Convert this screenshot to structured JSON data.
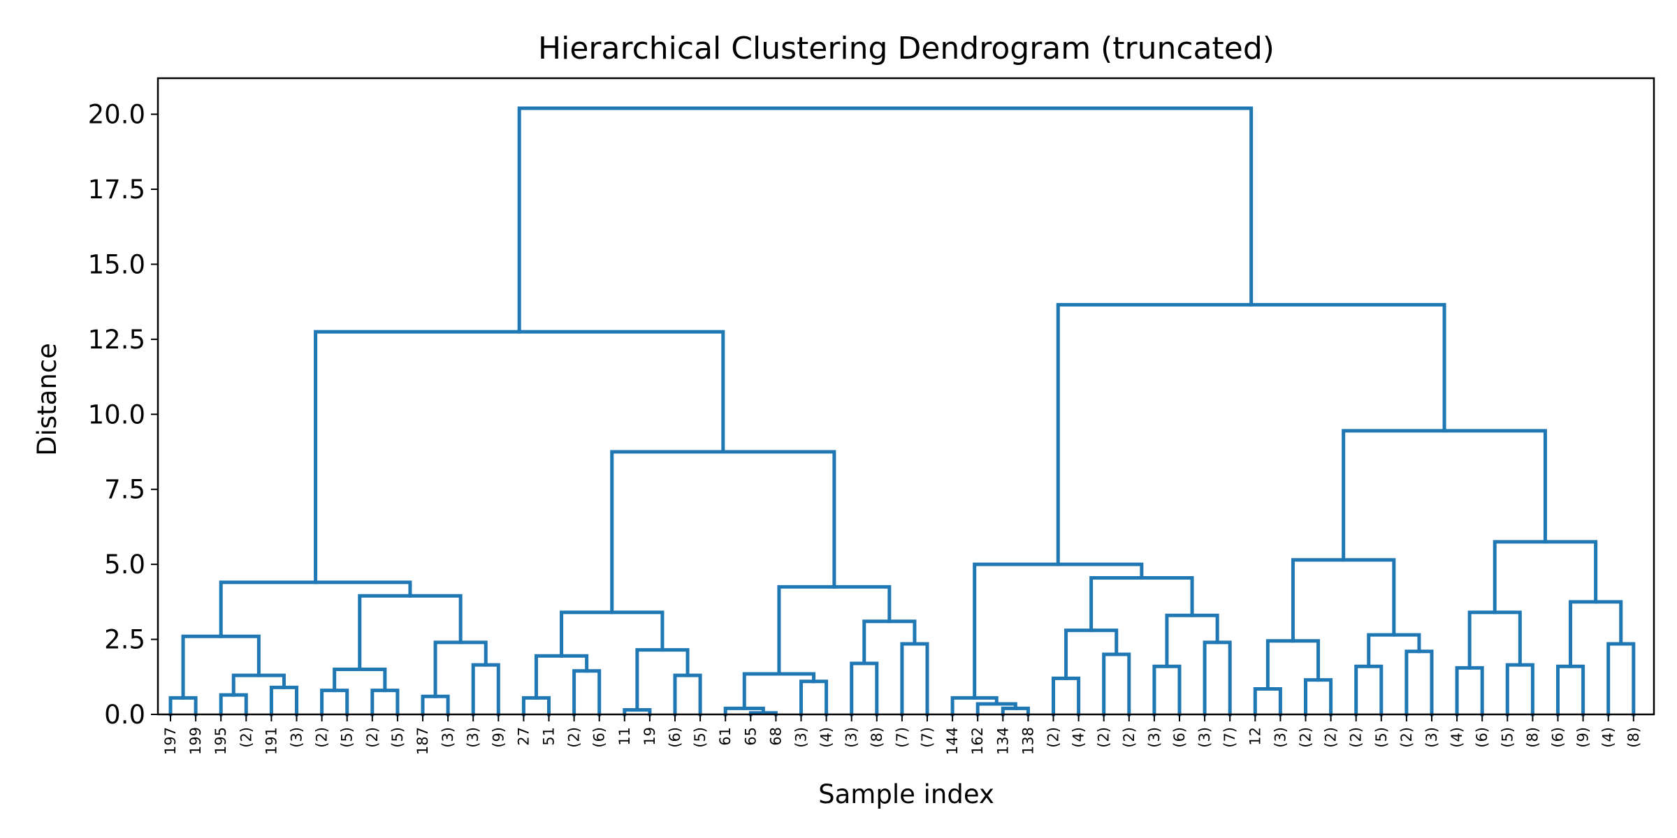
{
  "chart_data": {
    "type": "dendrogram",
    "title": "Hierarchical Clustering Dendrogram (truncated)",
    "xlabel": "Sample index",
    "ylabel": "Distance",
    "ylim": [
      0,
      21.2
    ],
    "yticks": [
      "0.0",
      "2.5",
      "5.0",
      "7.5",
      "10.0",
      "12.5",
      "15.0",
      "17.5",
      "20.0"
    ],
    "line_color": "#1f77b4",
    "leaves": [
      "197",
      "199",
      "195",
      "(2)",
      "191",
      "(3)",
      "(2)",
      "(5)",
      "(2)",
      "(5)",
      "187",
      "(3)",
      "(3)",
      "(9)",
      "27",
      "51",
      "(2)",
      "(6)",
      "11",
      "19",
      "(6)",
      "(5)",
      "61",
      "65",
      "68",
      "(3)",
      "(4)",
      "(3)",
      "(8)",
      "(7)",
      "(7)",
      "144",
      "162",
      "134",
      "138",
      "(2)",
      "(4)",
      "(2)",
      "(2)",
      "(3)",
      "(6)",
      "(3)",
      "(7)",
      "12",
      "(3)",
      "(2)",
      "(2)",
      "(2)",
      "(5)",
      "(2)",
      "(3)",
      "(4)",
      "(6)",
      "(5)",
      "(8)",
      "(6)",
      "(9)",
      "(4)",
      "(8)"
    ],
    "merges": [
      [
        "L0",
        "L1",
        0.55
      ],
      [
        "L2",
        "L3",
        0.65
      ],
      [
        "L4",
        "L5",
        0.9
      ],
      [
        "M1",
        "M2",
        1.3
      ],
      [
        "M0",
        "M3",
        2.6
      ],
      [
        "L6",
        "L7",
        0.8
      ],
      [
        "L8",
        "L9",
        0.8
      ],
      [
        "M5",
        "M6",
        1.5
      ],
      [
        "L10",
        "L11",
        0.6
      ],
      [
        "L12",
        "L13",
        1.65
      ],
      [
        "M8",
        "M9",
        2.4
      ],
      [
        "M7",
        "M10",
        3.95
      ],
      [
        "M4",
        "M11",
        4.4
      ],
      [
        "L14",
        "L15",
        0.55
      ],
      [
        "L16",
        "L17",
        1.45
      ],
      [
        "M13",
        "M14",
        1.95
      ],
      [
        "L18",
        "L19",
        0.15
      ],
      [
        "L20",
        "L21",
        1.3
      ],
      [
        "M16",
        "M17",
        2.15
      ],
      [
        "M15",
        "M18",
        3.4
      ],
      [
        "L23",
        "L24",
        0.05
      ],
      [
        "L22",
        "M20",
        0.2
      ],
      [
        "L25",
        "L26",
        1.1
      ],
      [
        "M21",
        "M22",
        1.35
      ],
      [
        "L27",
        "L28",
        1.7
      ],
      [
        "L29",
        "L30",
        2.35
      ],
      [
        "M24",
        "M25",
        3.1
      ],
      [
        "M23",
        "M26",
        4.25
      ],
      [
        "M19",
        "M27",
        8.75
      ],
      [
        "M12",
        "M28",
        12.75
      ],
      [
        "L33",
        "L34",
        0.2
      ],
      [
        "L32",
        "M30",
        0.35
      ],
      [
        "L31",
        "M31",
        0.55
      ],
      [
        "L35",
        "L36",
        1.2
      ],
      [
        "L37",
        "L38",
        2.0
      ],
      [
        "M33",
        "M34",
        2.8
      ],
      [
        "L39",
        "L40",
        1.6
      ],
      [
        "L41",
        "L42",
        2.4
      ],
      [
        "M36",
        "M37",
        3.3
      ],
      [
        "M35",
        "M38",
        4.55
      ],
      [
        "M32",
        "M39",
        5.0
      ],
      [
        "L43",
        "L44",
        0.85
      ],
      [
        "L45",
        "L46",
        1.15
      ],
      [
        "M41",
        "M42",
        2.45
      ],
      [
        "L47",
        "L48",
        1.6
      ],
      [
        "L49",
        "L50",
        2.1
      ],
      [
        "M44",
        "M45",
        2.65
      ],
      [
        "M43",
        "M46",
        5.15
      ],
      [
        "L51",
        "L52",
        1.55
      ],
      [
        "L53",
        "L54",
        1.65
      ],
      [
        "M48",
        "M49",
        3.4
      ],
      [
        "L55",
        "L56",
        1.6
      ],
      [
        "L57",
        "L58",
        2.35
      ],
      [
        "M51",
        "M52",
        3.75
      ],
      [
        "M50",
        "M53",
        5.75
      ],
      [
        "M47",
        "M54",
        9.45
      ],
      [
        "M40",
        "M55",
        13.65
      ],
      [
        "M29",
        "M56",
        20.2
      ]
    ]
  }
}
